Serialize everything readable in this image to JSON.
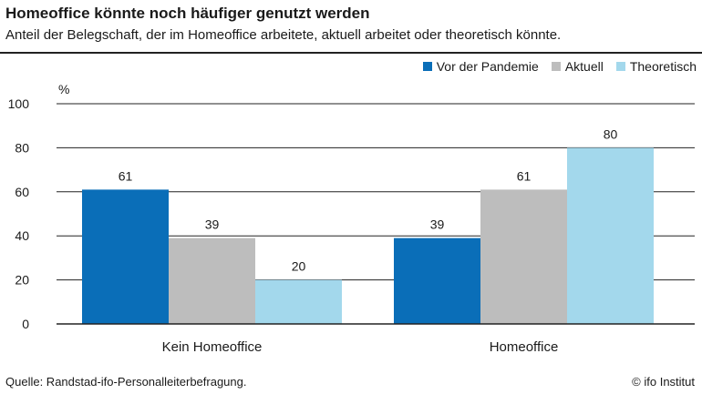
{
  "header": {
    "title": "Homeoffice könnte noch häufiger genutzt werden",
    "subtitle": "Anteil der Belegschaft, der im Homeoffice arbeitete, aktuell arbeitet oder theoretisch könnte."
  },
  "footer": {
    "source": "Quelle: Randstad-ifo-Personalleiterbefragung.",
    "credit": "© ifo Institut"
  },
  "chart_data": {
    "type": "bar",
    "categories": [
      "Kein Homeoffice",
      "Homeoffice"
    ],
    "series": [
      {
        "name": "Vor der Pandemie",
        "values": [
          61,
          39
        ],
        "color": "#0a6eb8"
      },
      {
        "name": "Aktuell",
        "values": [
          39,
          61
        ],
        "color": "#bdbdbd"
      },
      {
        "name": "Theoretisch",
        "values": [
          20,
          80
        ],
        "color": "#a3d8ec"
      }
    ],
    "ylabel": "%",
    "yticks": [
      0,
      20,
      40,
      60,
      80,
      100
    ],
    "ylim": [
      0,
      100
    ],
    "grid": true,
    "legend_position": "top-right",
    "data_labels": true
  }
}
